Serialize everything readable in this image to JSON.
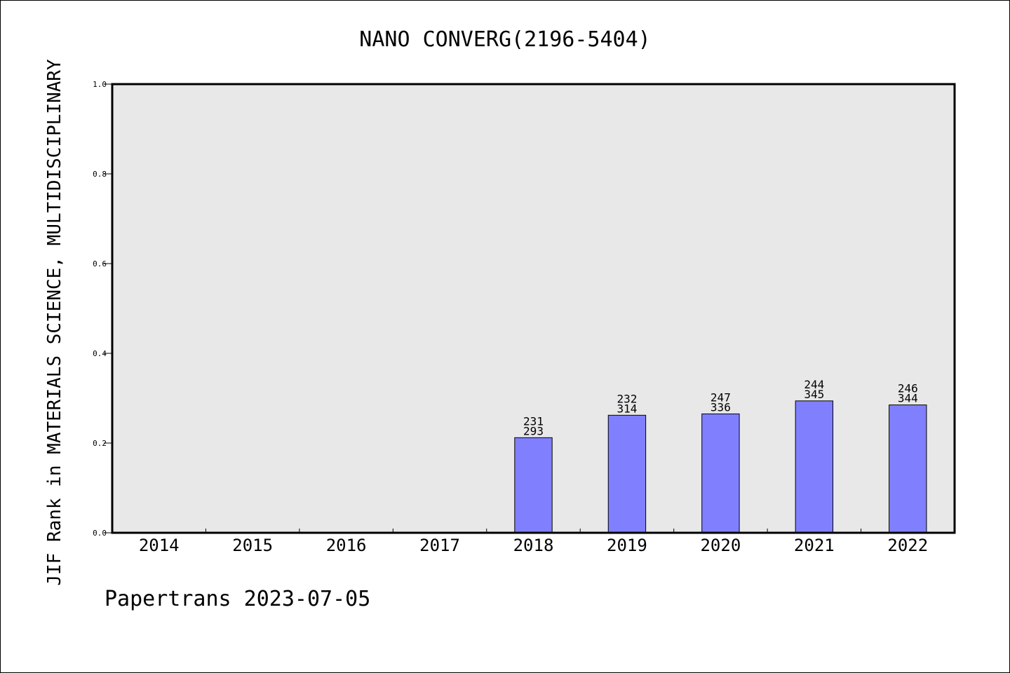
{
  "chart_data": {
    "type": "bar",
    "title": "NANO CONVERG(2196-5404)",
    "ylabel": "JIF Rank in MATERIALS SCIENCE, MULTIDISCIPLINARY",
    "xlabel": "",
    "ylim": [
      0,
      1.0
    ],
    "yticks": [
      "0.0",
      "0.2",
      "0.4",
      "0.6",
      "0.8",
      "1.0"
    ],
    "categories": [
      "2014",
      "2015",
      "2016",
      "2017",
      "2018",
      "2019",
      "2020",
      "2021",
      "2022"
    ],
    "values": [
      null,
      null,
      null,
      null,
      0.212,
      0.262,
      0.265,
      0.294,
      0.285
    ],
    "rank": [
      null,
      null,
      null,
      null,
      "231",
      "232",
      "247",
      "244",
      "246"
    ],
    "total": [
      null,
      null,
      null,
      null,
      "293",
      "314",
      "336",
      "345",
      "344"
    ],
    "bar_color": "#8080ff",
    "plot_background": "#e8e8e8",
    "grid": false,
    "legend": "none"
  },
  "footer": "Papertrans 2023-07-05"
}
